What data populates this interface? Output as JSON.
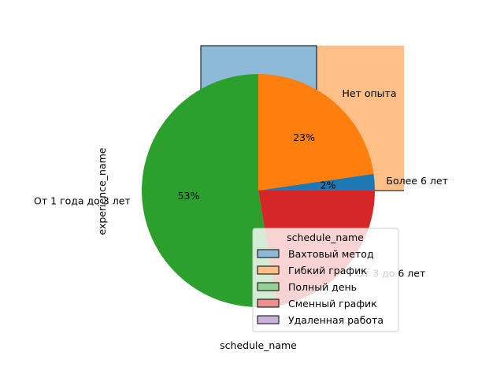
{
  "chart_data": {
    "type": "pie",
    "title": "",
    "xlabel": "schedule_name",
    "ylabel": "experience_name",
    "slices": [
      {
        "label": "Более 6 лет",
        "percent": 2.3,
        "pct_text": "2%",
        "color": "#1f77b4"
      },
      {
        "label": "Нет опыта",
        "percent": 22.7,
        "pct_text": "23%",
        "color": "#ff7f0e"
      },
      {
        "label": "От 1 года до 3 лет",
        "percent": 52.6,
        "pct_text": "53%",
        "color": "#2ca02c"
      },
      {
        "label": "От 3 до 6 лет",
        "percent": 22.4,
        "pct_text": "",
        "color": "#d62728"
      }
    ],
    "background_bars": [
      {
        "category": "Вахтовый метод",
        "color": "#8ebad9"
      },
      {
        "category": "Гибкий график",
        "color": "#ffbf86"
      }
    ],
    "legend": {
      "title": "schedule_name",
      "placement": "lower-right",
      "entries": [
        {
          "label": "Вахтовый метод",
          "color": "#8ebad9"
        },
        {
          "label": "Гибкий график",
          "color": "#ffbf86"
        },
        {
          "label": "Полный день",
          "color": "#95cf95"
        },
        {
          "label": "Сменный график",
          "color": "#ea9293"
        },
        {
          "label": "Удаленная работа",
          "color": "#c9b3dd"
        }
      ]
    }
  }
}
